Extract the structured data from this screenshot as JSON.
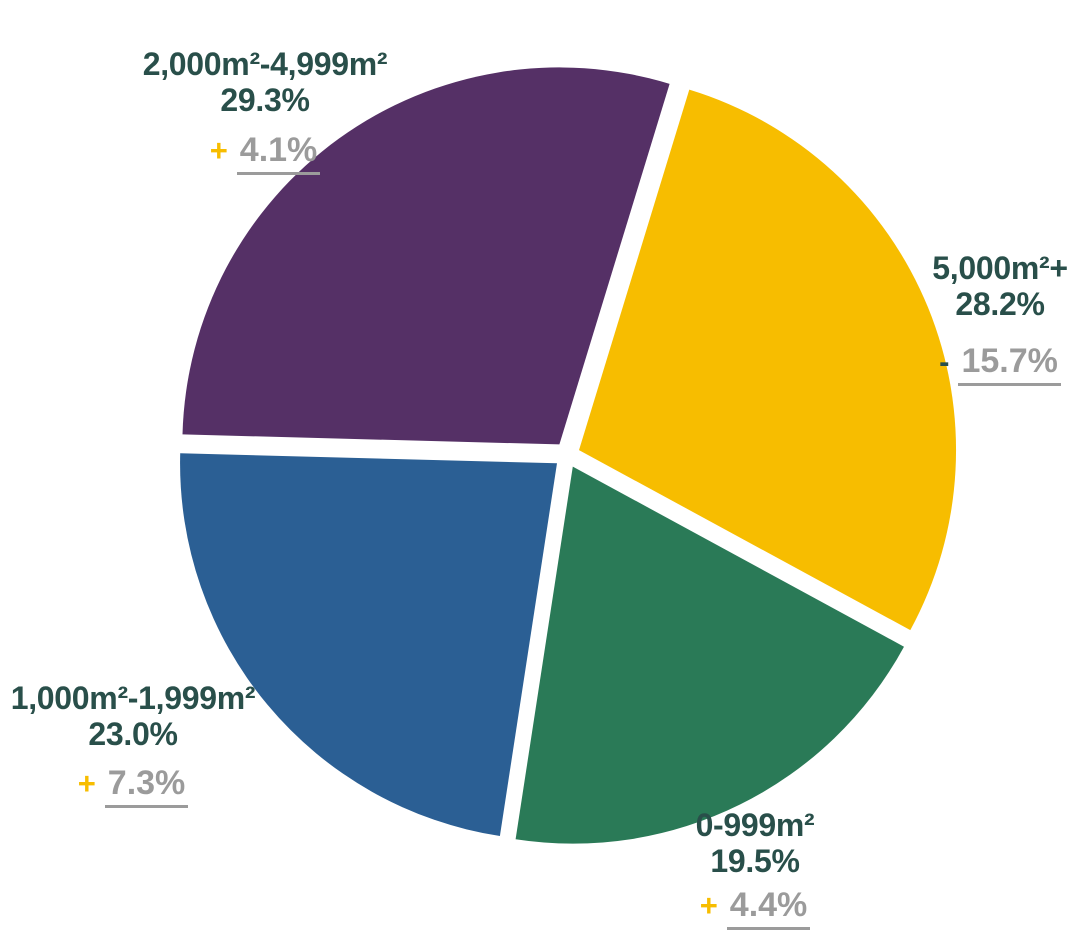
{
  "chart_data": {
    "type": "pie",
    "title": "",
    "background": "#FFFFFF",
    "start_angle_deg": 73,
    "direction": "clockwise",
    "exploded": true,
    "slices": [
      {
        "key": "5000-plus",
        "label": "5,000m²+",
        "value": 28.2,
        "pct_label": "28.2%",
        "color": "#F7BD00",
        "change_sign": "-",
        "change_label": "15.7%"
      },
      {
        "key": "0-999",
        "label": "0-999m²",
        "value": 19.5,
        "pct_label": "19.5%",
        "color": "#2A7A57",
        "change_sign": "+",
        "change_label": "4.4%"
      },
      {
        "key": "1000-1999",
        "label": "1,000m²-1,999m²",
        "value": 23.0,
        "pct_label": "23.0%",
        "color": "#2B5F94",
        "change_sign": "+",
        "change_label": "7.3%"
      },
      {
        "key": "2000-4999",
        "label": "2,000m²-4,999m²",
        "value": 29.3,
        "pct_label": "29.3%",
        "color": "#553066",
        "change_sign": "+",
        "change_label": "4.1%"
      }
    ],
    "colors": {
      "label_text": "#294F4A",
      "change_value": "#9B9B9B",
      "plus_sign": "#F7BD00",
      "minus_sign": "#294F4A"
    }
  }
}
